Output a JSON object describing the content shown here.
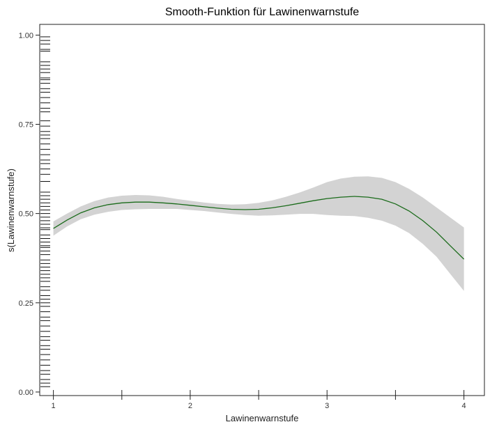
{
  "chart_data": {
    "type": "line",
    "title": "Smooth-Funktion für Lawinenwarnstufe",
    "xlabel": "Lawinenwarnstufe",
    "ylabel": "s(Lawinenwarnstufe)",
    "xlim": [
      0.9,
      4.15
    ],
    "ylim": [
      -0.01,
      1.03
    ],
    "x_ticks": [
      1,
      1.5,
      2,
      2.5,
      3,
      3.5,
      4
    ],
    "x_tick_labels": [
      "1",
      "",
      "2",
      "",
      "3",
      "",
      "4"
    ],
    "y_ticks": [
      0.0,
      0.25,
      0.5,
      0.75,
      1.0
    ],
    "y_tick_labels": [
      "0.00",
      "0.25",
      "0.50",
      "0.75",
      "1.00"
    ],
    "grid": false,
    "line_color": "#1a6b1a",
    "band_color": "#d3d3d3",
    "rug_color": "#111111",
    "series": [
      {
        "x": [
          1.0,
          1.1,
          1.2,
          1.3,
          1.4,
          1.5,
          1.6,
          1.7,
          1.8,
          1.9,
          2.0,
          2.1,
          2.2,
          2.3,
          2.4,
          2.5,
          2.6,
          2.7,
          2.8,
          2.9,
          3.0,
          3.1,
          3.2,
          3.3,
          3.4,
          3.5,
          3.6,
          3.7,
          3.8,
          3.9,
          4.0
        ],
        "y": [
          0.458,
          0.482,
          0.502,
          0.516,
          0.525,
          0.53,
          0.532,
          0.532,
          0.53,
          0.527,
          0.523,
          0.519,
          0.515,
          0.512,
          0.511,
          0.512,
          0.516,
          0.522,
          0.529,
          0.536,
          0.542,
          0.546,
          0.548,
          0.546,
          0.54,
          0.527,
          0.507,
          0.48,
          0.448,
          0.41,
          0.372
        ],
        "upper": [
          0.478,
          0.5,
          0.52,
          0.535,
          0.545,
          0.55,
          0.552,
          0.551,
          0.547,
          0.541,
          0.536,
          0.531,
          0.527,
          0.525,
          0.526,
          0.53,
          0.537,
          0.547,
          0.559,
          0.573,
          0.588,
          0.598,
          0.603,
          0.604,
          0.6,
          0.588,
          0.569,
          0.545,
          0.517,
          0.489,
          0.461
        ],
        "lower": [
          0.438,
          0.464,
          0.484,
          0.497,
          0.505,
          0.51,
          0.512,
          0.513,
          0.513,
          0.513,
          0.51,
          0.507,
          0.503,
          0.499,
          0.496,
          0.494,
          0.495,
          0.497,
          0.499,
          0.499,
          0.496,
          0.494,
          0.493,
          0.488,
          0.48,
          0.466,
          0.445,
          0.415,
          0.379,
          0.331,
          0.283
        ]
      }
    ],
    "rug_y": [
      0.995,
      0.985,
      0.975,
      0.96,
      0.955,
      0.925,
      0.915,
      0.905,
      0.895,
      0.88,
      0.875,
      0.865,
      0.85,
      0.84,
      0.825,
      0.81,
      0.795,
      0.785,
      0.76,
      0.745,
      0.73,
      0.72,
      0.71,
      0.695,
      0.68,
      0.665,
      0.65,
      0.64,
      0.625,
      0.61,
      0.59,
      0.56,
      0.55,
      0.54,
      0.53,
      0.52,
      0.51,
      0.5,
      0.49,
      0.48,
      0.47,
      0.46,
      0.455,
      0.44,
      0.43,
      0.42,
      0.41,
      0.405,
      0.395,
      0.385,
      0.37,
      0.36,
      0.35,
      0.34,
      0.33,
      0.32,
      0.31,
      0.295,
      0.285,
      0.27,
      0.26,
      0.25,
      0.24,
      0.225,
      0.21,
      0.2,
      0.185,
      0.17,
      0.155,
      0.145,
      0.13,
      0.12,
      0.105,
      0.09,
      0.075,
      0.06,
      0.05,
      0.035,
      0.025,
      0.015
    ]
  }
}
